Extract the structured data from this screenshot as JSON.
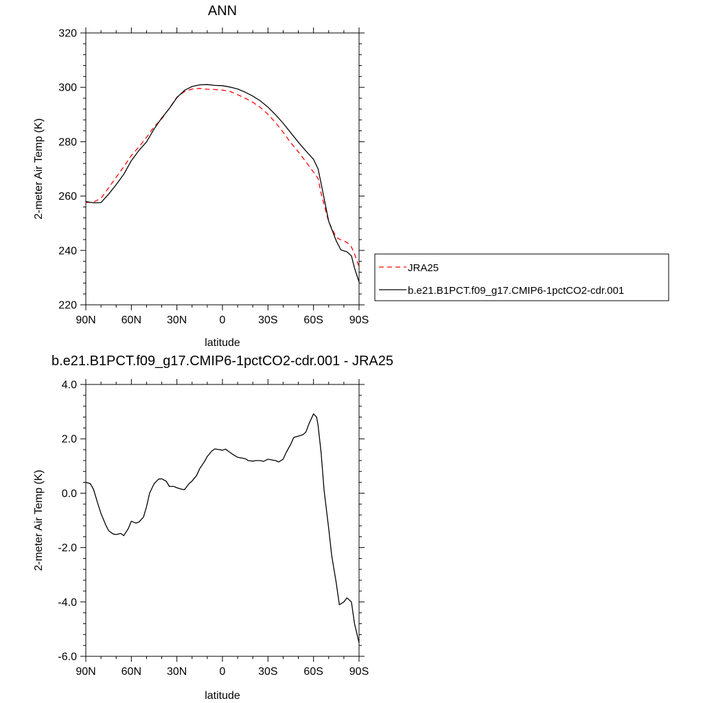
{
  "chart_data": [
    {
      "type": "line",
      "title": "ANN",
      "xlabel": "latitude",
      "ylabel": "2-meter Air Temp (K)",
      "xlim": [
        90,
        -90
      ],
      "ylim": [
        220,
        320
      ],
      "xticks": [
        90,
        60,
        30,
        0,
        -30,
        -60,
        -90
      ],
      "xticklabels": [
        "90N",
        "60N",
        "30N",
        "0",
        "30S",
        "60S",
        "90S"
      ],
      "yticks": [
        220,
        240,
        260,
        280,
        300,
        320
      ],
      "yticklabels": [
        "220",
        "240",
        "260",
        "280",
        "300",
        "320"
      ],
      "legend_position": "right",
      "series": [
        {
          "name": "JRA25",
          "color": "#ff0000",
          "dash": "dashed",
          "x": [
            90,
            85,
            80,
            75,
            70,
            65,
            60,
            55,
            50,
            45,
            40,
            35,
            30,
            25,
            20,
            15,
            10,
            5,
            0,
            -5,
            -10,
            -15,
            -20,
            -25,
            -30,
            -35,
            -40,
            -45,
            -50,
            -55,
            -60,
            -63,
            -65,
            -70,
            -75,
            -78,
            -82,
            -85,
            -87,
            -90
          ],
          "y": [
            257.6,
            257.8,
            259.2,
            263.0,
            266.9,
            270.8,
            274.9,
            278.1,
            281.6,
            285.5,
            288.4,
            292.3,
            296.4,
            298.4,
            299.4,
            299.6,
            299.3,
            299.2,
            299.0,
            298.5,
            297.3,
            296.0,
            294.5,
            292.6,
            290.1,
            287.0,
            283.5,
            279.6,
            276.3,
            272.6,
            268.8,
            266.5,
            261.0,
            250.5,
            244.8,
            243.9,
            243.0,
            241.3,
            238.7,
            234.0
          ]
        },
        {
          "name": "b.e21.B1PCT.f09_g17.CMIP6-1pctCO2-cdr.001",
          "color": "#000000",
          "dash": "solid",
          "x": [
            90,
            85,
            80,
            75,
            70,
            65,
            60,
            55,
            50,
            45,
            40,
            35,
            30,
            25,
            20,
            15,
            10,
            5,
            0,
            -5,
            -10,
            -15,
            -20,
            -25,
            -30,
            -35,
            -40,
            -45,
            -50,
            -55,
            -60,
            -63,
            -65,
            -70,
            -75,
            -78,
            -82,
            -85,
            -87,
            -90
          ],
          "y": [
            258.0,
            257.5,
            257.6,
            260.7,
            264.2,
            268.0,
            273.0,
            276.8,
            279.9,
            284.7,
            288.7,
            292.2,
            296.2,
            298.9,
            300.3,
            300.9,
            301.0,
            300.7,
            300.6,
            300.1,
            299.4,
            298.2,
            296.8,
            295.0,
            292.7,
            289.9,
            286.8,
            283.3,
            279.8,
            276.6,
            273.5,
            270.0,
            264.7,
            250.7,
            243.5,
            240.2,
            239.5,
            238.0,
            233.5,
            228.4
          ]
        }
      ]
    },
    {
      "type": "line",
      "title": "b.e21.B1PCT.f09_g17.CMIP6-1pctCO2-cdr.001 - JRA25",
      "xlabel": "latitude",
      "ylabel": "2-meter Air Temp (K)",
      "xlim": [
        90,
        -90
      ],
      "ylim": [
        -6.0,
        4.0
      ],
      "xticks": [
        90,
        60,
        30,
        0,
        -30,
        -60,
        -90
      ],
      "xticklabels": [
        "90N",
        "60N",
        "30N",
        "0",
        "30S",
        "60S",
        "90S"
      ],
      "yticks": [
        -6,
        -4,
        -2,
        0,
        2,
        4
      ],
      "yticklabels": [
        "-6.0",
        "-4.0",
        "-2.0",
        "0.0",
        "2.0",
        "4.0"
      ],
      "series": [
        {
          "color": "#000000",
          "dash": "solid",
          "x": [
            90,
            87,
            85,
            82,
            80,
            77,
            75,
            72,
            70,
            67,
            65,
            62,
            60,
            57,
            55,
            52,
            50,
            48,
            45,
            42,
            40,
            37,
            35,
            32,
            30,
            27,
            25,
            22,
            20,
            17,
            15,
            12,
            10,
            7,
            5,
            2,
            0,
            -2,
            -5,
            -7,
            -10,
            -12,
            -15,
            -17,
            -20,
            -22,
            -25,
            -27,
            -30,
            -33,
            -35,
            -37,
            -40,
            -42,
            -45,
            -47,
            -50,
            -53,
            -55,
            -57,
            -60,
            -62,
            -63,
            -65,
            -67,
            -70,
            -72,
            -75,
            -77,
            -80,
            -82,
            -83,
            -85,
            -87,
            -90
          ],
          "y": [
            0.4,
            0.35,
            0.15,
            -0.4,
            -0.75,
            -1.15,
            -1.38,
            -1.5,
            -1.52,
            -1.48,
            -1.56,
            -1.3,
            -1.03,
            -1.1,
            -1.06,
            -0.88,
            -0.5,
            0.0,
            0.35,
            0.52,
            0.53,
            0.44,
            0.25,
            0.25,
            0.2,
            0.15,
            0.13,
            0.35,
            0.45,
            0.65,
            0.9,
            1.15,
            1.35,
            1.55,
            1.63,
            1.6,
            1.58,
            1.62,
            1.5,
            1.42,
            1.32,
            1.3,
            1.27,
            1.2,
            1.18,
            1.2,
            1.2,
            1.17,
            1.25,
            1.22,
            1.2,
            1.15,
            1.25,
            1.5,
            1.8,
            2.05,
            2.1,
            2.15,
            2.25,
            2.55,
            2.92,
            2.8,
            2.5,
            1.5,
            0.1,
            -1.3,
            -2.3,
            -3.3,
            -4.1,
            -4.0,
            -3.85,
            -3.9,
            -4.0,
            -4.8,
            -5.5
          ]
        }
      ]
    }
  ]
}
